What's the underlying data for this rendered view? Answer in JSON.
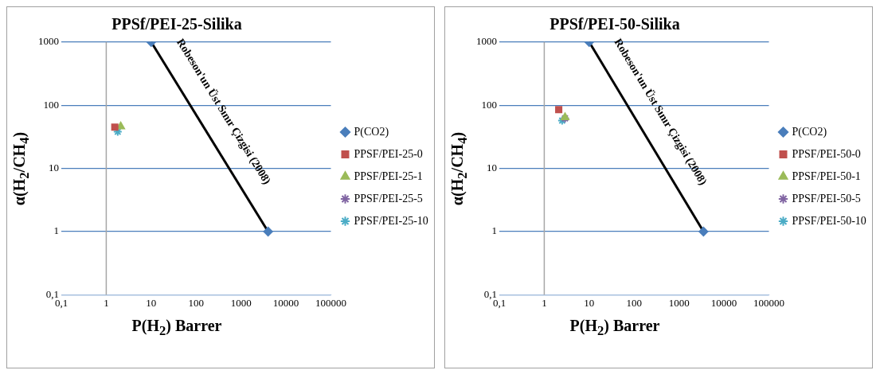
{
  "chart_data": [
    {
      "type": "scatter",
      "title": "PPSf/PEI-25-Silika",
      "xlabel": "P(H$_{2}$) Barrer",
      "ylabel": "α(H$_{2}$/CH$_{4}$)",
      "log": "xy",
      "grid": "y",
      "legend": "right",
      "xlim": [
        0.1,
        100000
      ],
      "xticks": [
        {
          "value": 0.1,
          "label": "0,1"
        },
        1,
        10,
        100,
        1000,
        10000,
        100000
      ],
      "ylim": [
        0.1,
        1000
      ],
      "yticks": [
        {
          "value": 0.1,
          "label": "0,1"
        },
        1,
        10,
        100,
        1000
      ],
      "ref_lines": [
        {
          "axis": "x",
          "value": 1,
          "color": "#a6a6a6"
        }
      ],
      "annotations": [
        "Robeson'un Üst Sınır Çizgisi (2008)"
      ],
      "series": [
        {
          "type": "line",
          "color": "#000000",
          "marker": "none",
          "x": [
            10,
            4000
          ],
          "values": [
            1000,
            1
          ]
        },
        {
          "name": "P(CO2)",
          "color": "#4a7ebb",
          "marker": "diamond",
          "x": [
            10,
            4000
          ],
          "values": [
            1000,
            1
          ]
        },
        {
          "name": "PPSF/PEI-25-0",
          "color": "#c0504d",
          "marker": "square",
          "x": [
            1.55
          ],
          "values": [
            45
          ]
        },
        {
          "name": "PPSF/PEI-25-1",
          "color": "#9bbb59",
          "marker": "triangle",
          "x": [
            2.1
          ],
          "values": [
            46
          ]
        },
        {
          "name": "PPSF/PEI-25-5",
          "color": "#8064a2",
          "marker": "cross"
        },
        {
          "name": "PPSF/PEI-25-10",
          "color": "#4bacc6",
          "marker": "cross",
          "x": [
            1.8
          ],
          "values": [
            38
          ]
        }
      ]
    },
    {
      "type": "scatter",
      "title": "PPSf/PEI-50-Silika",
      "xlabel": "P(H$_{2}$) Barrer",
      "ylabel": "α(H$_{2}$/CH$_{4}$)",
      "log": "xy",
      "grid": "y",
      "legend": "right",
      "xlim": [
        0.1,
        100000
      ],
      "xticks": [
        {
          "value": 0.1,
          "label": "0,1"
        },
        1,
        10,
        100,
        1000,
        10000,
        100000
      ],
      "ylim": [
        0.1,
        1000
      ],
      "yticks": [
        {
          "value": 0.1,
          "label": "0,1"
        },
        1,
        10,
        100,
        1000
      ],
      "ref_lines": [
        {
          "axis": "x",
          "value": 1,
          "color": "#a6a6a6"
        }
      ],
      "annotations": [
        "Robeson'un Üst Sınır Çizgisi (2008)"
      ],
      "series": [
        {
          "type": "line",
          "color": "#000000",
          "marker": "none",
          "x": [
            10,
            3500
          ],
          "values": [
            1000,
            1
          ]
        },
        {
          "name": "P(CO2)",
          "color": "#4a7ebb",
          "marker": "diamond",
          "x": [
            10,
            3500
          ],
          "values": [
            1000,
            1
          ]
        },
        {
          "name": "PPSF/PEI-50-0",
          "color": "#c0504d",
          "marker": "square",
          "x": [
            2.1
          ],
          "values": [
            85
          ]
        },
        {
          "name": "PPSF/PEI-50-1",
          "color": "#9bbb59",
          "marker": "triangle",
          "x": [
            2.9
          ],
          "values": [
            64
          ]
        },
        {
          "name": "PPSF/PEI-50-5",
          "color": "#8064a2",
          "marker": "cross",
          "x": [
            2.9
          ],
          "values": [
            62
          ]
        },
        {
          "name": "PPSF/PEI-50-10",
          "color": "#4bacc6",
          "marker": "cross",
          "x": [
            2.5
          ],
          "values": [
            57
          ]
        }
      ]
    }
  ]
}
